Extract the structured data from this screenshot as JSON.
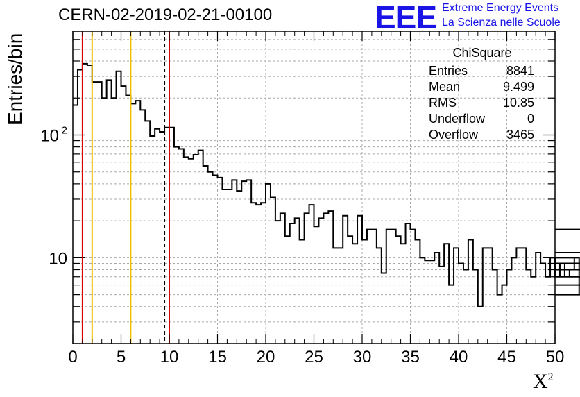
{
  "header": {
    "title": "CERN-02-2019-02-21-00100",
    "logo_text": "EEE",
    "logo_line1": "Extreme Energy Events",
    "logo_line2": "La Scienza nelle Scuole",
    "logo_color": "#1a14e6"
  },
  "stats": {
    "title": "ChiSquare",
    "rows": [
      {
        "label": "Entries",
        "value": "8841"
      },
      {
        "label": "Mean",
        "value": "9.499"
      },
      {
        "label": "RMS",
        "value": "10.85"
      },
      {
        "label": "Underflow",
        "value": "0"
      },
      {
        "label": "Overflow",
        "value": "3465"
      }
    ]
  },
  "chart_data": {
    "type": "histogram",
    "title": "CERN-02-2019-02-21-00100",
    "xlabel": "X",
    "xlabel_superscript": "2",
    "ylabel": "Entries/bin",
    "yscale": "log",
    "xlim": [
      0,
      50
    ],
    "ylim": [
      2,
      700
    ],
    "bin_width": 0.5,
    "x_ticks": [
      0,
      5,
      10,
      15,
      20,
      25,
      30,
      35,
      40,
      45,
      50
    ],
    "y_ticks": [
      {
        "value": 10,
        "label": "10"
      },
      {
        "value": 100,
        "label": "10",
        "sup": "2"
      }
    ],
    "grid": true,
    "values": [
      175,
      340,
      380,
      370,
      270,
      270,
      200,
      280,
      200,
      330,
      250,
      210,
      180,
      190,
      160,
      130,
      98,
      112,
      106,
      115,
      115,
      80,
      77,
      66,
      64,
      69,
      75,
      56,
      50,
      47,
      45,
      36,
      36,
      43,
      35,
      42,
      43,
      28,
      27,
      28,
      40,
      31,
      20,
      23,
      15,
      19,
      21,
      14,
      23,
      27,
      18,
      21,
      23,
      24,
      12,
      12,
      22,
      15,
      13,
      22,
      14,
      17,
      17,
      12,
      7.5,
      17,
      17,
      15,
      13,
      19,
      17,
      14,
      10,
      9.5,
      9.5,
      11,
      8.5,
      13,
      6,
      12,
      9,
      8,
      14,
      8,
      4,
      12,
      12,
      8,
      5,
      6,
      8,
      10,
      12,
      12,
      8,
      7,
      11,
      9,
      7,
      10,
      7,
      9,
      7,
      8,
      10,
      5,
      5,
      6,
      7,
      8,
      9,
      9,
      17,
      11,
      9,
      11
    ],
    "vertical_lines": [
      {
        "x": 1,
        "color": "#dd0000",
        "style": "solid"
      },
      {
        "x": 2,
        "color": "#f0c000",
        "style": "solid"
      },
      {
        "x": 6,
        "color": "#f0c000",
        "style": "solid"
      },
      {
        "x": 9.5,
        "color": "#000000",
        "style": "dashed"
      },
      {
        "x": 10,
        "color": "#dd0000",
        "style": "solid"
      }
    ]
  }
}
